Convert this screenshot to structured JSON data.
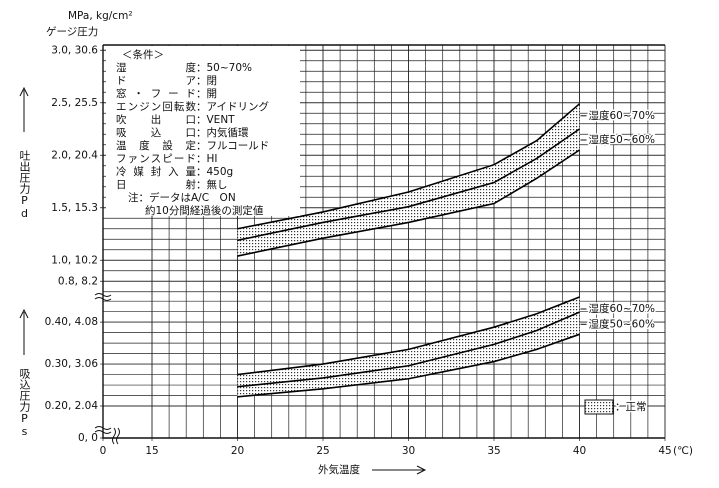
{
  "chart_data": [
    {
      "type": "band",
      "y_unit": "MPa, kg/cm²",
      "y_subtitle": "ゲージ圧力",
      "ylabel": "吐出圧力Pd",
      "x": [
        20,
        25,
        30,
        35,
        37.5,
        40
      ],
      "series": [
        {
          "name": "湿度60~70%",
          "color": "#000000",
          "values": [
            1.3,
            1.46,
            1.65,
            1.91,
            2.14,
            2.49
          ]
        },
        {
          "color": "#000000",
          "values": [
            1.19,
            1.36,
            1.51,
            1.74,
            1.97,
            2.25
          ]
        },
        {
          "name": "湿度50~60%",
          "color": "#000000",
          "values": [
            1.04,
            1.21,
            1.36,
            1.54,
            1.78,
            2.05
          ]
        }
      ],
      "xlim": [
        0,
        45
      ],
      "x_break": 15,
      "ylim": [
        0.65,
        3.05
      ],
      "yticks": [
        {
          "value": 3.0,
          "label": "3.0, 30.6"
        },
        {
          "value": 2.5,
          "label": "2.5, 25.5"
        },
        {
          "value": 2.0,
          "label": "2.0, 20.4"
        },
        {
          "value": 1.5,
          "label": "1.5, 15.3"
        },
        {
          "value": 1.0,
          "label": "1.0, 10.2"
        },
        {
          "value": 0.8,
          "label": "0.8,  8.2"
        }
      ],
      "grid": true,
      "x_minor_step": 1,
      "y_minor_step": 0.1
    },
    {
      "type": "band",
      "ylabel": "吸込圧力Ps",
      "xlabel": "外気温度",
      "x_unit": "(℃)",
      "x": [
        20,
        25,
        30,
        35,
        37.5,
        40
      ],
      "series": [
        {
          "name": "湿度60~70%",
          "color": "#000000",
          "values": [
            0.275,
            0.3,
            0.335,
            0.388,
            0.42,
            0.46
          ]
        },
        {
          "color": "#000000",
          "values": [
            0.246,
            0.267,
            0.296,
            0.347,
            0.38,
            0.424
          ]
        },
        {
          "name": "湿度50~60%",
          "color": "#000000",
          "values": [
            0.222,
            0.241,
            0.265,
            0.306,
            0.335,
            0.371
          ]
        }
      ],
      "xlim": [
        0,
        45
      ],
      "x_break": 15,
      "ylim": [
        0,
        0.46
      ],
      "axis_break": 0.2,
      "xticks": [
        0,
        15,
        20,
        25,
        30,
        35,
        40,
        45
      ],
      "yticks": [
        {
          "value": 0.4,
          "label": "0.40, 4.08"
        },
        {
          "value": 0.3,
          "label": "0.30, 3.06"
        },
        {
          "value": 0.2,
          "label": "0.20, 2.04"
        },
        {
          "value": 0,
          "label": "0, 0"
        }
      ],
      "grid": true,
      "x_minor_step": 1,
      "y_minor_step": 0.025,
      "legend_label": "：正常"
    }
  ],
  "conditions": {
    "title": "＜条件＞",
    "rows": [
      [
        "湿度",
        "：50~70%"
      ],
      [
        "ドア",
        "：閉"
      ],
      [
        "窓・フード",
        "：開"
      ],
      [
        "エンジン回転数",
        "：アイドリング"
      ],
      [
        "吹出口",
        "：VENT"
      ],
      [
        "吸込口",
        "：内気循環"
      ],
      [
        "温度設定",
        "：フルコールド"
      ],
      [
        "ファンスピード",
        "：HI"
      ],
      [
        "冷媒封入量",
        "：450g"
      ],
      [
        "日射",
        "：無し"
      ]
    ],
    "notes": [
      "注：データはA/C　ON",
      "約10分間経過後の測定値"
    ]
  }
}
